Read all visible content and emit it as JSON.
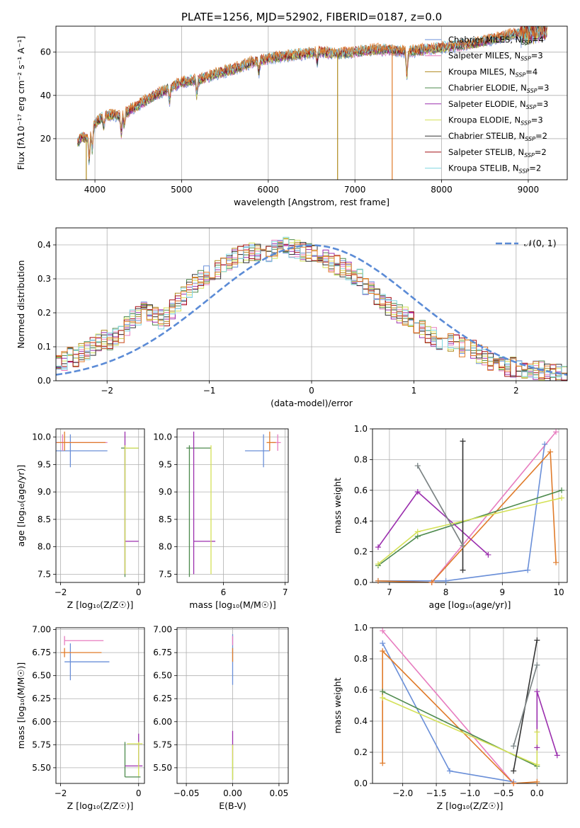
{
  "figure": {
    "title": "PLATE=1256, MJD=52902, FIBERID=0187, z=0.0"
  },
  "chart_data": [
    {
      "id": "spectrum",
      "type": "line",
      "xlabel": "wavelength [Angstrom, rest frame]",
      "ylabel": "Flux [fλ10⁻¹⁷ erg cm⁻² s⁻¹ A⁻¹]",
      "xlim": [
        3550,
        9450
      ],
      "ylim": [
        1,
        72
      ],
      "xticks": [
        4000,
        5000,
        6000,
        7000,
        8000,
        9000
      ],
      "yticks": [
        20,
        40,
        60
      ],
      "legend_position": "top-right",
      "series": [
        {
          "name": "Chabrier MILES, N_SSP=4",
          "name_main": "Chabrier MILES, N",
          "name_sub": "SSP",
          "name_tail": "=4",
          "color": "#6a8fd8"
        },
        {
          "name": "Salpeter MILES, N_SSP=3",
          "name_main": "Salpeter MILES, N",
          "name_sub": "SSP",
          "name_tail": "=3",
          "color": "#e77cbf"
        },
        {
          "name": "Kroupa MILES, N_SSP=4",
          "name_main": "Kroupa MILES, N",
          "name_sub": "SSP",
          "name_tail": "=4",
          "color": "#b08a1e"
        },
        {
          "name": "Chabrier ELODIE, N_SSP=3",
          "name_main": "Chabrier ELODIE, N",
          "name_sub": "SSP",
          "name_tail": "=3",
          "color": "#4d8a4d"
        },
        {
          "name": "Salpeter ELODIE, N_SSP=3",
          "name_main": "Salpeter ELODIE, N",
          "name_sub": "SSP",
          "name_tail": "=3",
          "color": "#9b2fae"
        },
        {
          "name": "Kroupa ELODIE, N_SSP=3",
          "name_main": "Kroupa ELODIE, N",
          "name_sub": "SSP",
          "name_tail": "=3",
          "color": "#d4e157"
        },
        {
          "name": "Chabrier STELIB, N_SSP=2",
          "name_main": "Chabrier STELIB, N",
          "name_sub": "SSP",
          "name_tail": "=2",
          "color": "#333333"
        },
        {
          "name": "Salpeter STELIB, N_SSP=2",
          "name_main": "Salpeter STELIB, N",
          "name_sub": "SSP",
          "name_tail": "=2",
          "color": "#a50f15"
        },
        {
          "name": "Kroupa STELIB, N_SSP=2",
          "name_main": "Kroupa STELIB, N",
          "name_sub": "SSP",
          "name_tail": "=2",
          "color": "#7fd6e0"
        }
      ],
      "extra_series_color": "#e07b2a",
      "approx_continuum": [
        [
          3800,
          18
        ],
        [
          3850,
          21
        ],
        [
          3900,
          20
        ],
        [
          3950,
          22
        ],
        [
          4000,
          27
        ],
        [
          4100,
          30
        ],
        [
          4200,
          31
        ],
        [
          4300,
          30
        ],
        [
          4400,
          33
        ],
        [
          4600,
          38
        ],
        [
          4800,
          42
        ],
        [
          5000,
          46
        ],
        [
          5200,
          47
        ],
        [
          5400,
          50
        ],
        [
          5600,
          52
        ],
        [
          5800,
          55
        ],
        [
          6000,
          57
        ],
        [
          6200,
          58
        ],
        [
          6400,
          59
        ],
        [
          6600,
          60
        ],
        [
          6800,
          59
        ],
        [
          7000,
          60
        ],
        [
          7200,
          61
        ],
        [
          7400,
          61
        ],
        [
          7600,
          60
        ],
        [
          7800,
          61
        ],
        [
          8000,
          62
        ],
        [
          8200,
          63
        ],
        [
          8400,
          64
        ],
        [
          8600,
          66
        ],
        [
          8800,
          68
        ],
        [
          9000,
          69
        ],
        [
          9200,
          70
        ]
      ],
      "absorption_features": [
        [
          3934,
          12
        ],
        [
          3969,
          10
        ],
        [
          4102,
          5
        ],
        [
          4304,
          8
        ],
        [
          4340,
          6
        ],
        [
          4861,
          6
        ],
        [
          5175,
          7
        ],
        [
          5893,
          6
        ],
        [
          6563,
          5
        ],
        [
          7600,
          12
        ]
      ],
      "dropouts": [
        [
          3900,
          "#b08a1e",
          1
        ],
        [
          6800,
          "#b08a1e",
          1
        ],
        [
          7430,
          "#e07b2a",
          1
        ]
      ]
    },
    {
      "id": "residuals",
      "type": "step",
      "xlabel": "(data-model)/error",
      "ylabel": "Normed distribution",
      "xlim": [
        -2.5,
        2.5
      ],
      "ylim": [
        0,
        0.45
      ],
      "xticks": [
        -2,
        -1,
        0,
        1,
        2
      ],
      "yticks": [
        0.0,
        0.1,
        0.2,
        0.3,
        0.4
      ],
      "bin_width": 0.1,
      "gaussian_label": "𝒩(0, 1)",
      "gaussian_color": "#5b8bd6",
      "envelope": [
        0.05,
        0.06,
        0.07,
        0.07,
        0.08,
        0.09,
        0.1,
        0.11,
        0.12,
        0.12,
        0.13,
        0.14,
        0.16,
        0.18,
        0.19,
        0.21,
        0.2,
        0.19,
        0.18,
        0.19,
        0.21,
        0.23,
        0.25,
        0.27,
        0.29,
        0.3,
        0.31,
        0.32,
        0.33,
        0.34,
        0.35,
        0.36,
        0.37,
        0.37,
        0.38,
        0.38,
        0.38,
        0.38,
        0.39,
        0.39,
        0.4,
        0.39,
        0.39,
        0.38,
        0.38,
        0.37,
        0.37,
        0.36,
        0.35,
        0.34,
        0.33,
        0.32,
        0.31,
        0.3,
        0.28,
        0.27,
        0.25,
        0.24,
        0.22,
        0.21,
        0.2,
        0.19,
        0.18,
        0.16,
        0.15,
        0.14,
        0.13,
        0.12,
        0.12,
        0.11,
        0.11,
        0.1,
        0.09,
        0.09,
        0.08,
        0.07,
        0.06,
        0.05,
        0.05,
        0.04,
        0.04,
        0.04,
        0.03,
        0.03,
        0.03,
        0.03,
        0.02,
        0.02,
        0.02,
        0.02
      ],
      "envelope_start": -2.5
    },
    {
      "id": "age_vs_Z",
      "type": "errorbar",
      "xlabel": "Z [log₁₀(Z/Z☉)]",
      "ylabel": "age [log₁₀(age/yr)]",
      "xlim": [
        -2.12,
        0.15
      ],
      "ylim": [
        7.35,
        10.15
      ],
      "xticks": [
        -2,
        0
      ],
      "yticks": [
        7.5,
        8.0,
        8.5,
        9.0,
        9.5,
        10.0
      ],
      "points": [
        {
          "x": -1.75,
          "xerr": [
            0.5,
            0.95
          ],
          "y": 9.75,
          "yerr": [
            0.3,
            0.3
          ],
          "color": "#6a8fd8"
        },
        {
          "x": -1.95,
          "xerr": [
            0.2,
            1.15
          ],
          "y": 9.9,
          "yerr": [
            0.15,
            0.15
          ],
          "color": "#e77cbf"
        },
        {
          "x": -1.9,
          "xerr": [
            0.2,
            1.05
          ],
          "y": 9.9,
          "yerr": [
            0.15,
            0.2
          ],
          "color": "#e07b2a"
        },
        {
          "x": -0.35,
          "xerr": [
            0.1,
            0.35
          ],
          "y": 9.8,
          "yerr": [
            2.35,
            0.05
          ],
          "color": "#4d8a4d"
        },
        {
          "x": -0.35,
          "xerr": [
            0.0,
            0.35
          ],
          "y": 8.1,
          "yerr": [
            0.6,
            2.0
          ],
          "color": "#9b2fae"
        },
        {
          "x": -0.35,
          "xerr": [
            0.0,
            0.35
          ],
          "y": 9.8,
          "yerr": [
            2.3,
            0.05
          ],
          "color": "#d4e157"
        }
      ]
    },
    {
      "id": "age_vs_mass",
      "type": "errorbar",
      "xlabel": "mass [log₁₀(M/M☉)]",
      "ylabel": "",
      "xlim": [
        5.25,
        7.05
      ],
      "ylim": [
        7.35,
        10.15
      ],
      "xticks": [
        6,
        7
      ],
      "yticks": [
        7.5,
        8.0,
        8.5,
        9.0,
        9.5,
        10.0
      ],
      "points": [
        {
          "x": 6.65,
          "xerr": [
            0.3,
            0.1
          ],
          "y": 9.75,
          "yerr": [
            0.3,
            0.3
          ],
          "color": "#6a8fd8"
        },
        {
          "x": 6.88,
          "xerr": [
            0.1,
            0.05
          ],
          "y": 9.9,
          "yerr": [
            0.15,
            0.15
          ],
          "color": "#e77cbf"
        },
        {
          "x": 6.75,
          "xerr": [
            0.05,
            0.1
          ],
          "y": 9.9,
          "yerr": [
            0.15,
            0.2
          ],
          "color": "#e07b2a"
        },
        {
          "x": 5.45,
          "xerr": [
            0.05,
            0.35
          ],
          "y": 9.8,
          "yerr": [
            2.35,
            0.05
          ],
          "color": "#4d8a4d"
        },
        {
          "x": 5.52,
          "xerr": [
            0.0,
            0.35
          ],
          "y": 8.1,
          "yerr": [
            0.6,
            2.0
          ],
          "color": "#9b2fae"
        },
        {
          "x": 5.8,
          "xerr": [
            0.0,
            0.0
          ],
          "y": 9.8,
          "yerr": [
            2.3,
            0.05
          ],
          "color": "#d4e157"
        }
      ]
    },
    {
      "id": "weight_vs_age",
      "type": "line",
      "xlabel": "age  [log₁₀(age/yr)]",
      "ylabel": "mass weight",
      "xlim": [
        6.7,
        10.15
      ],
      "ylim": [
        0,
        1
      ],
      "xticks": [
        7,
        8,
        9,
        10
      ],
      "yticks": [
        0.0,
        0.2,
        0.4,
        0.6,
        0.8,
        1.0
      ],
      "series": [
        {
          "color": "#6a8fd8",
          "points": [
            [
              6.8,
              0.01
            ],
            [
              8.0,
              0.01
            ],
            [
              9.45,
              0.08
            ],
            [
              9.75,
              0.9
            ]
          ]
        },
        {
          "color": "#e77cbf",
          "points": [
            [
              7.75,
              0.0
            ],
            [
              9.95,
              0.98
            ]
          ]
        },
        {
          "color": "#e07b2a",
          "points": [
            [
              6.8,
              0.01
            ],
            [
              7.75,
              0.0
            ],
            [
              9.85,
              0.85
            ],
            [
              9.95,
              0.13
            ]
          ]
        },
        {
          "color": "#4d8a4d",
          "points": [
            [
              6.8,
              0.11
            ],
            [
              7.5,
              0.3
            ],
            [
              10.05,
              0.6
            ]
          ]
        },
        {
          "color": "#9b2fae",
          "points": [
            [
              6.8,
              0.23
            ],
            [
              7.5,
              0.59
            ],
            [
              8.75,
              0.18
            ]
          ]
        },
        {
          "color": "#d4e157",
          "points": [
            [
              6.8,
              0.12
            ],
            [
              7.5,
              0.33
            ],
            [
              10.05,
              0.55
            ]
          ]
        },
        {
          "color": "#333333",
          "points": [
            [
              8.3,
              0.08
            ],
            [
              8.3,
              0.92
            ]
          ]
        },
        {
          "color": "#7fd6e0",
          "points": [
            [
              7.5,
              0.76
            ],
            [
              8.3,
              0.24
            ]
          ]
        },
        {
          "color": "#808080",
          "points": [
            [
              7.5,
              0.76
            ],
            [
              8.3,
              0.24
            ]
          ]
        }
      ]
    },
    {
      "id": "mass_vs_Z",
      "type": "errorbar",
      "xlabel": "Z [log₁₀(Z/Z☉)]",
      "ylabel": "mass [log₁₀(M/M☉)]",
      "xlim": [
        -2.12,
        0.15
      ],
      "ylim": [
        5.33,
        7.02
      ],
      "xticks": [
        -2,
        0
      ],
      "yticks": [
        5.5,
        5.75,
        6.0,
        6.25,
        6.5,
        6.75,
        7.0
      ],
      "points": [
        {
          "x": -1.75,
          "xerr": [
            0.15,
            1.0
          ],
          "y": 6.65,
          "yerr": [
            0.2,
            0.2
          ],
          "color": "#6a8fd8"
        },
        {
          "x": -1.9,
          "xerr": [
            0.0,
            1.0
          ],
          "y": 6.88,
          "yerr": [
            0.05,
            0.05
          ],
          "color": "#e77cbf"
        },
        {
          "x": -1.9,
          "xerr": [
            0.1,
            0.95
          ],
          "y": 6.75,
          "yerr": [
            0.05,
            0.05
          ],
          "color": "#e07b2a"
        },
        {
          "x": -0.35,
          "xerr": [
            0.0,
            0.4
          ],
          "y": 5.4,
          "yerr": [
            0.0,
            0.38
          ],
          "color": "#4d8a4d"
        },
        {
          "x": 0.0,
          "xerr": [
            0.35,
            0.1
          ],
          "y": 5.52,
          "yerr": [
            0.0,
            0.35
          ],
          "color": "#9b2fae"
        },
        {
          "x": 0.0,
          "xerr": [
            0.3,
            0.1
          ],
          "y": 5.76,
          "yerr": [
            0.35,
            0.02
          ],
          "color": "#d4e157"
        }
      ]
    },
    {
      "id": "mass_vs_ebv",
      "type": "errorbar",
      "xlabel": "E(B-V)",
      "ylabel": "",
      "xlim": [
        -0.06,
        0.06
      ],
      "ylim": [
        5.33,
        7.02
      ],
      "xticks": [
        -0.05,
        0.0,
        0.05
      ],
      "yticks": [
        5.5,
        5.75,
        6.0,
        6.25,
        6.5,
        6.75,
        7.0
      ],
      "points": [
        {
          "x": 0.0,
          "xerr": [
            0,
            0
          ],
          "y": 6.65,
          "yerr": [
            0.25,
            0.3
          ],
          "color": "#6a8fd8"
        },
        {
          "x": 0.0,
          "xerr": [
            0,
            0
          ],
          "y": 6.88,
          "yerr": [
            0.05,
            0.05
          ],
          "color": "#e77cbf"
        },
        {
          "x": 0.0,
          "xerr": [
            0,
            0
          ],
          "y": 6.75,
          "yerr": [
            0.1,
            0.05
          ],
          "color": "#e07b2a"
        },
        {
          "x": 0.0,
          "xerr": [
            0,
            0
          ],
          "y": 5.55,
          "yerr": [
            0.18,
            0.05
          ],
          "color": "#4d8a4d"
        },
        {
          "x": 0.0,
          "xerr": [
            0,
            0
          ],
          "y": 5.75,
          "yerr": [
            0.15,
            0.15
          ],
          "color": "#9b2fae"
        },
        {
          "x": 0.0,
          "xerr": [
            0,
            0
          ],
          "y": 5.55,
          "yerr": [
            0.18,
            0.2
          ],
          "color": "#d4e157"
        }
      ]
    },
    {
      "id": "weight_vs_Z",
      "type": "line",
      "xlabel": "Z [log₁₀(Z/Z☉)]",
      "ylabel": "mass weight",
      "xlim": [
        -2.45,
        0.45
      ],
      "ylim": [
        0,
        1
      ],
      "xticks": [
        -2.0,
        -1.5,
        -1.0,
        -0.5,
        0.0
      ],
      "yticks": [
        0.0,
        0.2,
        0.4,
        0.6,
        0.8,
        1.0
      ],
      "series": [
        {
          "color": "#6a8fd8",
          "points": [
            [
              -2.3,
              0.9
            ],
            [
              -1.3,
              0.08
            ],
            [
              -0.35,
              0.01
            ]
          ]
        },
        {
          "color": "#e77cbf",
          "points": [
            [
              -2.3,
              0.98
            ],
            [
              -0.35,
              0.0
            ]
          ]
        },
        {
          "color": "#e07b2a",
          "points": [
            [
              -2.3,
              0.13
            ],
            [
              -2.3,
              0.85
            ],
            [
              -0.35,
              0.0
            ],
            [
              0.0,
              0.01
            ]
          ]
        },
        {
          "color": "#4d8a4d",
          "points": [
            [
              -2.3,
              0.59
            ],
            [
              0.0,
              0.11
            ]
          ]
        },
        {
          "color": "#9b2fae",
          "points": [
            [
              0.0,
              0.23
            ],
            [
              0.0,
              0.59
            ],
            [
              0.3,
              0.18
            ]
          ]
        },
        {
          "color": "#d4e157",
          "points": [
            [
              -2.3,
              0.55
            ],
            [
              0.0,
              0.12
            ],
            [
              0.0,
              0.33
            ]
          ]
        },
        {
          "color": "#333333",
          "points": [
            [
              -0.35,
              0.08
            ],
            [
              0.0,
              0.92
            ]
          ]
        },
        {
          "color": "#7fd6e0",
          "points": [
            [
              -0.35,
              0.24
            ],
            [
              0.0,
              0.76
            ]
          ]
        },
        {
          "color": "#808080",
          "points": [
            [
              -0.35,
              0.24
            ],
            [
              0.0,
              0.76
            ]
          ]
        }
      ]
    }
  ]
}
